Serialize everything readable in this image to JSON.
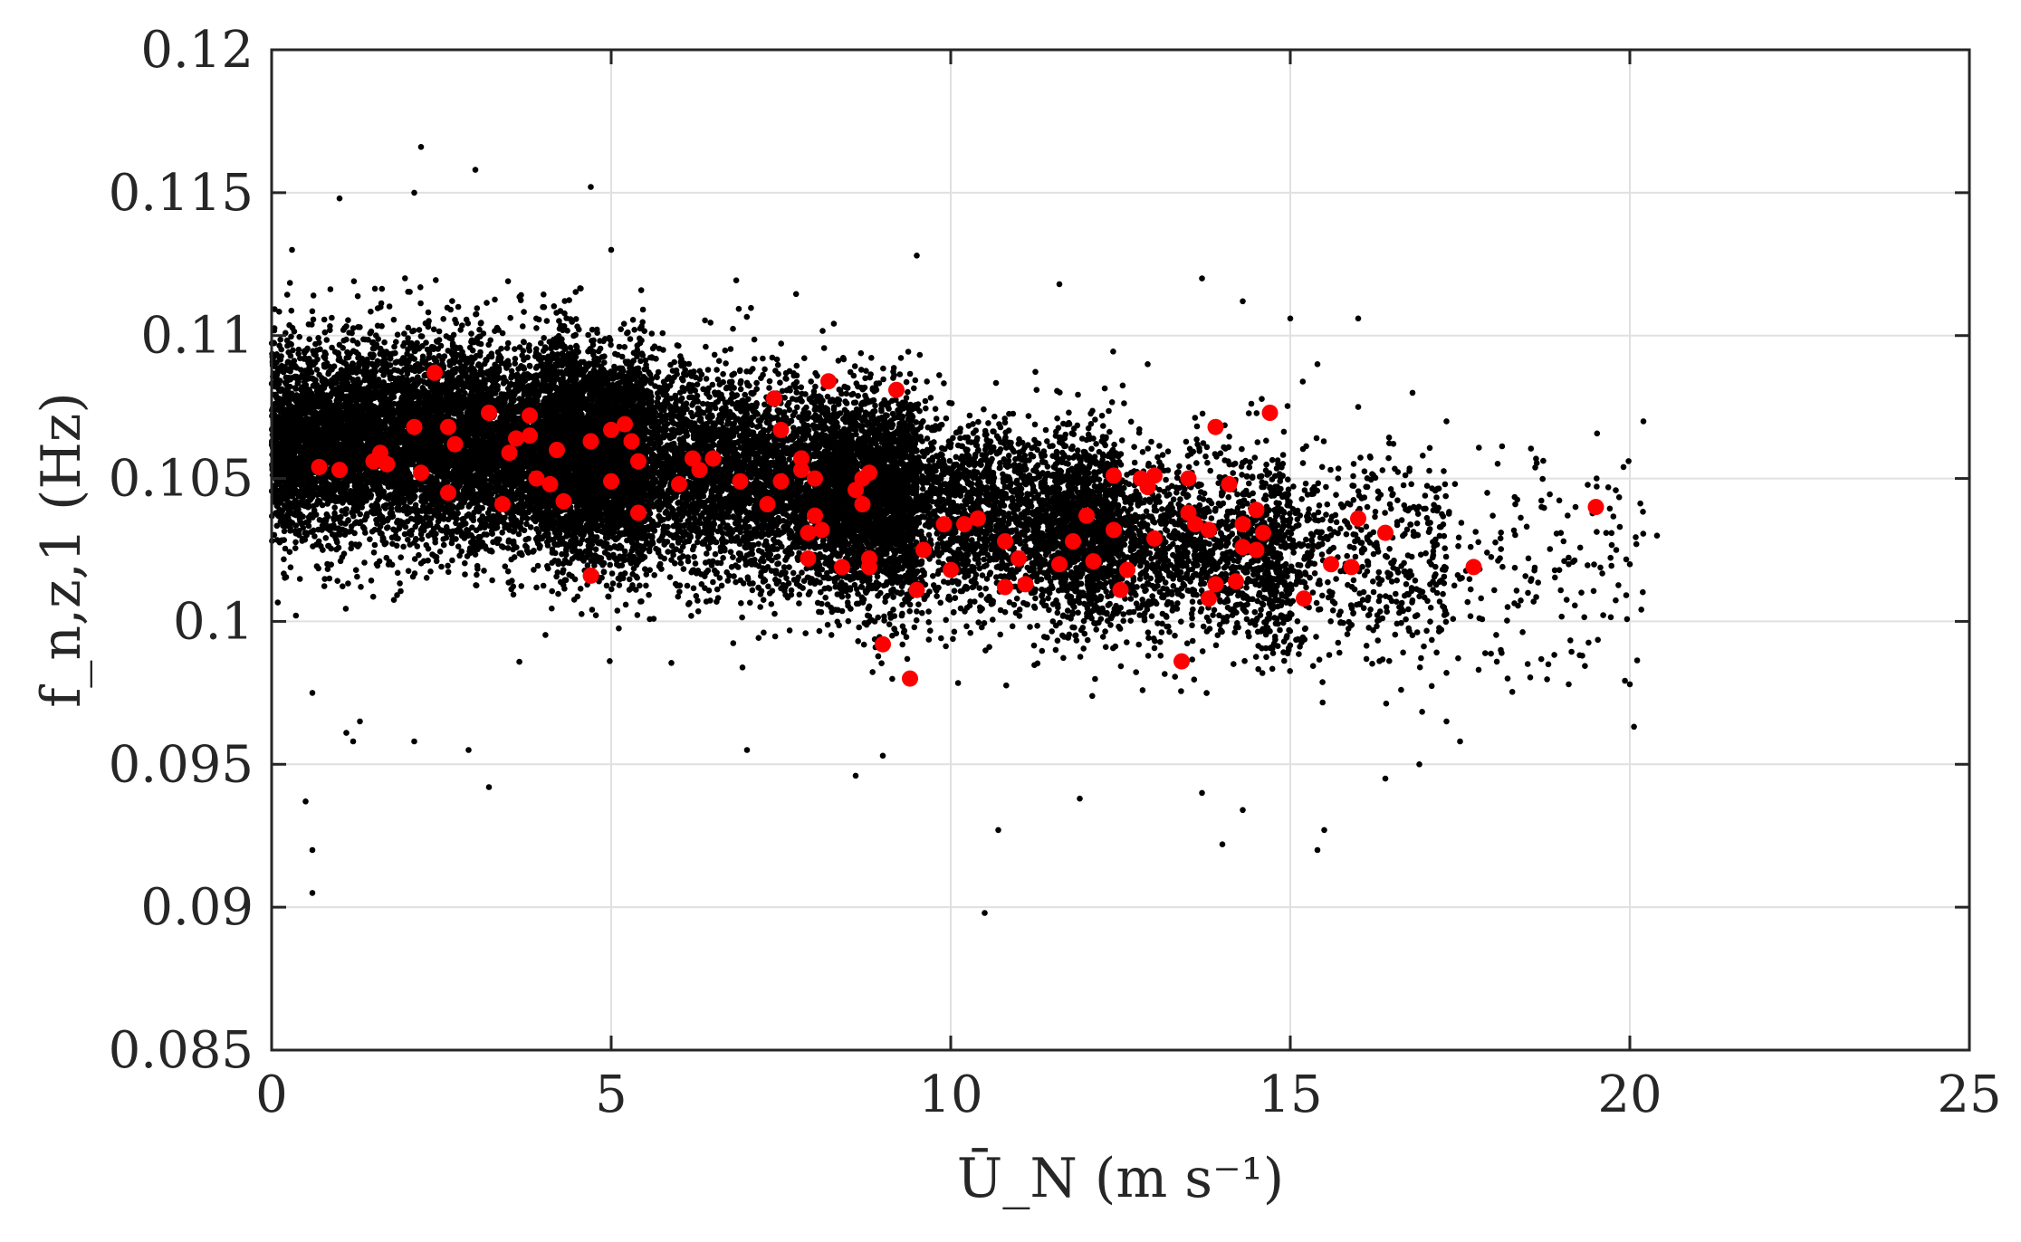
{
  "chart_data": {
    "type": "scatter",
    "title": "",
    "xlabel": "Ū_N (m s⁻¹)",
    "ylabel": "f_n,z,1 (Hz)",
    "xlim": [
      0,
      25
    ],
    "ylim": [
      0.085,
      0.12
    ],
    "x_ticks": [
      0,
      5,
      10,
      15,
      20,
      25
    ],
    "y_ticks": [
      0.085,
      0.09,
      0.095,
      0.1,
      0.105,
      0.11,
      0.115,
      0.12
    ],
    "x_tick_labels": [
      "0",
      "5",
      "10",
      "15",
      "20",
      "25"
    ],
    "y_tick_labels": [
      "0.085",
      "0.09",
      "0.095",
      "0.1",
      "0.105",
      "0.11",
      "0.115",
      "0.12"
    ],
    "grid": true,
    "legend": "none",
    "colors": {
      "background_points": "#000000",
      "highlight_points": "#ff0000",
      "axes": "#262626",
      "grid": "#e0e0e0"
    },
    "series": [
      {
        "color": "#000000",
        "description_of_distribution": "dense cloud (thousands of points); trend from ~0.1065 at 0 m/s to ~0.102 at 16 m/s",
        "cluster_trend": {
          "x": [
            0,
            1,
            2,
            3,
            4,
            5,
            6,
            7,
            8,
            9,
            10,
            11,
            12,
            13,
            14,
            15,
            16,
            17,
            18,
            19,
            20
          ],
          "mean": [
            0.1062,
            0.1063,
            0.1063,
            0.1062,
            0.106,
            0.1057,
            0.1054,
            0.105,
            0.1046,
            0.1043,
            0.1039,
            0.1035,
            0.1032,
            0.1029,
            0.1026,
            0.1024,
            0.1022,
            0.102,
            0.1019,
            0.1018,
            0.1017
          ],
          "spread": [
            0.0019,
            0.002,
            0.0021,
            0.0021,
            0.0021,
            0.0021,
            0.0021,
            0.0021,
            0.0021,
            0.0021,
            0.002,
            0.002,
            0.002,
            0.002,
            0.002,
            0.0021,
            0.0021,
            0.0021,
            0.0022,
            0.0022,
            0.0022
          ]
        },
        "outliers": [
          [
            0.5,
            0.0937
          ],
          [
            0.6,
            0.092
          ],
          [
            0.6,
            0.0905
          ],
          [
            0.6,
            0.0975
          ],
          [
            1.1,
            0.0961
          ],
          [
            1.2,
            0.0958
          ],
          [
            1.3,
            0.0965
          ],
          [
            2.1,
            0.0958
          ],
          [
            3.2,
            0.0942
          ],
          [
            2.9,
            0.0955
          ],
          [
            10.5,
            0.0898
          ],
          [
            10.7,
            0.0927
          ],
          [
            14.0,
            0.0922
          ],
          [
            14.3,
            0.0934
          ],
          [
            15.4,
            0.092
          ],
          [
            15.5,
            0.0927
          ],
          [
            13.7,
            0.094
          ],
          [
            11.9,
            0.0938
          ],
          [
            8.6,
            0.0946
          ],
          [
            9.0,
            0.0953
          ],
          [
            7.0,
            0.0955
          ],
          [
            16.4,
            0.0945
          ],
          [
            16.9,
            0.095
          ],
          [
            17.5,
            0.0958
          ],
          [
            17.3,
            0.0965
          ],
          [
            2.2,
            0.1166
          ],
          [
            3.0,
            0.1158
          ],
          [
            2.1,
            0.115
          ],
          [
            1.0,
            0.1148
          ],
          [
            0.3,
            0.113
          ],
          [
            4.7,
            0.1152
          ],
          [
            5.0,
            0.113
          ],
          [
            9.5,
            0.1128
          ],
          [
            11.6,
            0.1118
          ],
          [
            13.7,
            0.112
          ],
          [
            14.3,
            0.1112
          ],
          [
            15.0,
            0.1106
          ],
          [
            16.0,
            0.1106
          ],
          [
            16.8,
            0.108
          ],
          [
            17.3,
            0.107
          ],
          [
            17.9,
            0.1045
          ],
          [
            18.7,
            0.104
          ],
          [
            19.2,
            0.104
          ],
          [
            20.2,
            0.107
          ],
          [
            20.4,
            0.103
          ],
          [
            19.8,
            0.1025
          ],
          [
            20.0,
            0.102
          ],
          [
            19.1,
            0.102
          ],
          [
            18.5,
            0.101
          ],
          [
            18.2,
            0.1005
          ],
          [
            18.1,
            0.099
          ],
          [
            18.8,
            0.0985
          ],
          [
            19.3,
            0.0988
          ],
          [
            19.1,
            0.0978
          ],
          [
            20.0,
            0.0978
          ],
          [
            17.3,
            0.0982
          ],
          [
            18.2,
            0.098
          ],
          [
            12.9,
            0.109
          ],
          [
            15.4,
            0.109
          ],
          [
            16.0,
            0.1075
          ]
        ]
      },
      {
        "color": "#ff0000",
        "points": [
          [
            0.7,
            0.1054
          ],
          [
            1.0,
            0.1053
          ],
          [
            1.5,
            0.1056
          ],
          [
            1.6,
            0.1059
          ],
          [
            1.7,
            0.1055
          ],
          [
            2.1,
            0.1068
          ],
          [
            2.4,
            0.1087
          ],
          [
            2.2,
            0.1052
          ],
          [
            2.6,
            0.1045
          ],
          [
            2.6,
            0.1068
          ],
          [
            2.7,
            0.1062
          ],
          [
            3.2,
            0.1073
          ],
          [
            3.4,
            0.1041
          ],
          [
            3.5,
            0.1059
          ],
          [
            3.6,
            0.1064
          ],
          [
            3.8,
            0.1065
          ],
          [
            3.8,
            0.1072
          ],
          [
            3.9,
            0.105
          ],
          [
            4.1,
            0.1048
          ],
          [
            4.2,
            0.106
          ],
          [
            4.3,
            0.1042
          ],
          [
            4.7,
            0.1016
          ],
          [
            4.7,
            0.1063
          ],
          [
            5.0,
            0.1067
          ],
          [
            5.0,
            0.1049
          ],
          [
            5.2,
            0.1069
          ],
          [
            5.3,
            0.1063
          ],
          [
            5.4,
            0.1056
          ],
          [
            5.4,
            0.1038
          ],
          [
            6.0,
            0.1048
          ],
          [
            6.2,
            0.1057
          ],
          [
            6.3,
            0.1053
          ],
          [
            6.5,
            0.1057
          ],
          [
            6.9,
            0.1049
          ],
          [
            7.3,
            0.1041
          ],
          [
            7.4,
            0.1078
          ],
          [
            7.5,
            0.1067
          ],
          [
            7.5,
            0.1049
          ],
          [
            7.8,
            0.1057
          ],
          [
            7.8,
            0.1053
          ],
          [
            8.0,
            0.105
          ],
          [
            7.9,
            0.1031
          ],
          [
            8.0,
            0.1037
          ],
          [
            7.9,
            0.1022
          ],
          [
            8.1,
            0.1032
          ],
          [
            8.2,
            0.1084
          ],
          [
            8.4,
            0.1019
          ],
          [
            8.6,
            0.1046
          ],
          [
            8.7,
            0.1041
          ],
          [
            8.7,
            0.105
          ],
          [
            8.8,
            0.1052
          ],
          [
            8.8,
            0.1019
          ],
          [
            8.8,
            0.1022
          ],
          [
            9.0,
            0.0992
          ],
          [
            9.2,
            0.1081
          ],
          [
            9.4,
            0.098
          ],
          [
            9.5,
            0.1011
          ],
          [
            9.6,
            0.1025
          ],
          [
            9.9,
            0.1034
          ],
          [
            10.0,
            0.1018
          ],
          [
            10.2,
            0.1034
          ],
          [
            10.4,
            0.1036
          ],
          [
            10.8,
            0.1028
          ],
          [
            10.8,
            0.1012
          ],
          [
            11.0,
            0.1022
          ],
          [
            11.1,
            0.1013
          ],
          [
            11.6,
            0.102
          ],
          [
            11.8,
            0.1028
          ],
          [
            12.0,
            0.1037
          ],
          [
            12.1,
            0.1021
          ],
          [
            12.4,
            0.1032
          ],
          [
            12.4,
            0.1051
          ],
          [
            12.5,
            0.1011
          ],
          [
            12.6,
            0.1018
          ],
          [
            12.8,
            0.105
          ],
          [
            12.9,
            0.1047
          ],
          [
            13.0,
            0.1051
          ],
          [
            13.0,
            0.1029
          ],
          [
            13.4,
            0.0986
          ],
          [
            13.5,
            0.105
          ],
          [
            13.5,
            0.1038
          ],
          [
            13.6,
            0.1034
          ],
          [
            13.8,
            0.1032
          ],
          [
            13.8,
            0.1008
          ],
          [
            13.9,
            0.1013
          ],
          [
            13.9,
            0.1068
          ],
          [
            14.1,
            0.1048
          ],
          [
            14.2,
            0.1014
          ],
          [
            14.3,
            0.1026
          ],
          [
            14.3,
            0.1034
          ],
          [
            14.5,
            0.1039
          ],
          [
            14.5,
            0.1025
          ],
          [
            14.6,
            0.1031
          ],
          [
            14.7,
            0.1073
          ],
          [
            15.2,
            0.1008
          ],
          [
            15.6,
            0.102
          ],
          [
            15.9,
            0.1019
          ],
          [
            16.0,
            0.1036
          ],
          [
            16.4,
            0.1031
          ],
          [
            17.7,
            0.1019
          ],
          [
            19.5,
            0.104
          ]
        ]
      }
    ]
  }
}
